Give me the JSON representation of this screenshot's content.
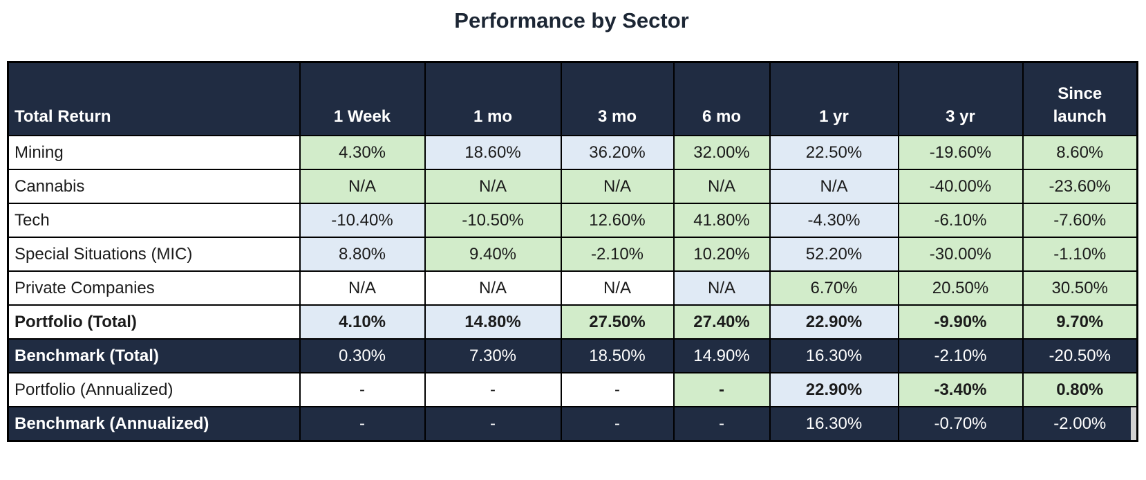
{
  "title": "Performance by Sector",
  "palette": {
    "navy": "#202c42",
    "green": "#d2ecca",
    "blue": "#e0eaf5",
    "grid": "#000000",
    "artifact_gray": "#d2d2d2"
  },
  "table": {
    "header": [
      "Total Return",
      "1 Week",
      "1 mo",
      "3 mo",
      "6 mo",
      "1 yr",
      "3 yr",
      "Since\nlaunch"
    ],
    "rows": [
      {
        "label": "Mining",
        "row_bg": "white",
        "label_bold": false,
        "cells": [
          {
            "v": "4.30%",
            "bg": "green",
            "bold": false
          },
          {
            "v": "18.60%",
            "bg": "blue",
            "bold": false
          },
          {
            "v": "36.20%",
            "bg": "blue",
            "bold": false
          },
          {
            "v": "32.00%",
            "bg": "green",
            "bold": false
          },
          {
            "v": "22.50%",
            "bg": "blue",
            "bold": false
          },
          {
            "v": "-19.60%",
            "bg": "green",
            "bold": false
          },
          {
            "v": "8.60%",
            "bg": "green",
            "bold": false
          }
        ]
      },
      {
        "label": "Cannabis",
        "row_bg": "white",
        "label_bold": false,
        "cells": [
          {
            "v": "N/A",
            "bg": "green",
            "bold": false
          },
          {
            "v": "N/A",
            "bg": "green",
            "bold": false
          },
          {
            "v": "N/A",
            "bg": "green",
            "bold": false
          },
          {
            "v": "N/A",
            "bg": "green",
            "bold": false
          },
          {
            "v": "N/A",
            "bg": "blue",
            "bold": false
          },
          {
            "v": "-40.00%",
            "bg": "green",
            "bold": false
          },
          {
            "v": "-23.60%",
            "bg": "green",
            "bold": false
          }
        ]
      },
      {
        "label": "Tech",
        "row_bg": "white",
        "label_bold": false,
        "cells": [
          {
            "v": "-10.40%",
            "bg": "blue",
            "bold": false
          },
          {
            "v": "-10.50%",
            "bg": "green",
            "bold": false
          },
          {
            "v": "12.60%",
            "bg": "green",
            "bold": false
          },
          {
            "v": "41.80%",
            "bg": "green",
            "bold": false
          },
          {
            "v": "-4.30%",
            "bg": "blue",
            "bold": false
          },
          {
            "v": "-6.10%",
            "bg": "green",
            "bold": false
          },
          {
            "v": "-7.60%",
            "bg": "green",
            "bold": false
          }
        ]
      },
      {
        "label": "Special Situations (MIC)",
        "row_bg": "white",
        "label_bold": false,
        "cells": [
          {
            "v": "8.80%",
            "bg": "blue",
            "bold": false
          },
          {
            "v": "9.40%",
            "bg": "green",
            "bold": false
          },
          {
            "v": "-2.10%",
            "bg": "green",
            "bold": false
          },
          {
            "v": "10.20%",
            "bg": "green",
            "bold": false
          },
          {
            "v": "52.20%",
            "bg": "blue",
            "bold": false
          },
          {
            "v": "-30.00%",
            "bg": "green",
            "bold": false
          },
          {
            "v": "-1.10%",
            "bg": "green",
            "bold": false
          }
        ]
      },
      {
        "label": "Private Companies",
        "row_bg": "white",
        "label_bold": false,
        "cells": [
          {
            "v": "N/A",
            "bg": "white",
            "bold": false
          },
          {
            "v": "N/A",
            "bg": "white",
            "bold": false
          },
          {
            "v": "N/A",
            "bg": "white",
            "bold": false
          },
          {
            "v": "N/A",
            "bg": "blue",
            "bold": false
          },
          {
            "v": "6.70%",
            "bg": "green",
            "bold": false
          },
          {
            "v": "20.50%",
            "bg": "green",
            "bold": false
          },
          {
            "v": "30.50%",
            "bg": "green",
            "bold": false
          }
        ]
      },
      {
        "label": "Portfolio (Total)",
        "row_bg": "white",
        "label_bold": true,
        "cells": [
          {
            "v": "4.10%",
            "bg": "blue",
            "bold": true
          },
          {
            "v": "14.80%",
            "bg": "blue",
            "bold": true
          },
          {
            "v": "27.50%",
            "bg": "green",
            "bold": true
          },
          {
            "v": "27.40%",
            "bg": "green",
            "bold": true
          },
          {
            "v": "22.90%",
            "bg": "blue",
            "bold": true
          },
          {
            "v": "-9.90%",
            "bg": "green",
            "bold": true
          },
          {
            "v": "9.70%",
            "bg": "green",
            "bold": true
          }
        ]
      },
      {
        "label": "Benchmark (Total)",
        "row_bg": "navy",
        "label_bold": true,
        "cells": [
          {
            "v": "0.30%",
            "bg": "navy",
            "bold": false
          },
          {
            "v": "7.30%",
            "bg": "navy",
            "bold": false
          },
          {
            "v": "18.50%",
            "bg": "navy",
            "bold": false
          },
          {
            "v": "14.90%",
            "bg": "navy",
            "bold": false
          },
          {
            "v": "16.30%",
            "bg": "navy",
            "bold": false
          },
          {
            "v": "-2.10%",
            "bg": "navy",
            "bold": false
          },
          {
            "v": "-20.50%",
            "bg": "navy",
            "bold": false
          }
        ]
      },
      {
        "label": "Portfolio (Annualized)",
        "row_bg": "white",
        "label_bold": false,
        "cells": [
          {
            "v": "-",
            "bg": "white",
            "bold": false
          },
          {
            "v": "-",
            "bg": "white",
            "bold": false
          },
          {
            "v": "-",
            "bg": "white",
            "bold": false
          },
          {
            "v": "-",
            "bg": "green",
            "bold": true
          },
          {
            "v": "22.90%",
            "bg": "blue",
            "bold": true
          },
          {
            "v": "-3.40%",
            "bg": "green",
            "bold": true
          },
          {
            "v": "0.80%",
            "bg": "green",
            "bold": true
          }
        ]
      },
      {
        "label": "Benchmark (Annualized)",
        "row_bg": "navy",
        "label_bold": true,
        "cells": [
          {
            "v": "-",
            "bg": "navy",
            "bold": false
          },
          {
            "v": "-",
            "bg": "navy",
            "bold": false
          },
          {
            "v": "-",
            "bg": "navy",
            "bold": false
          },
          {
            "v": "-",
            "bg": "navy",
            "bold": false
          },
          {
            "v": "16.30%",
            "bg": "navy",
            "bold": false
          },
          {
            "v": "-0.70%",
            "bg": "navy",
            "bold": false
          },
          {
            "v": "-2.00%",
            "bg": "navy",
            "bold": false,
            "artifact": true
          }
        ]
      }
    ]
  },
  "chart_data": {
    "type": "table",
    "title": "Performance by Sector",
    "categories": [
      "1 Week",
      "1 mo",
      "3 mo",
      "6 mo",
      "1 yr",
      "3 yr",
      "Since launch"
    ],
    "row_header": "Total Return",
    "series": [
      {
        "name": "Mining",
        "values": [
          4.3,
          18.6,
          36.2,
          32.0,
          22.5,
          -19.6,
          8.6
        ]
      },
      {
        "name": "Cannabis",
        "values": [
          null,
          null,
          null,
          null,
          null,
          -40.0,
          -23.6
        ]
      },
      {
        "name": "Tech",
        "values": [
          -10.4,
          -10.5,
          12.6,
          41.8,
          -4.3,
          -6.1,
          -7.6
        ]
      },
      {
        "name": "Special Situations (MIC)",
        "values": [
          8.8,
          9.4,
          -2.1,
          10.2,
          52.2,
          -30.0,
          -1.1
        ]
      },
      {
        "name": "Private Companies",
        "values": [
          null,
          null,
          null,
          null,
          6.7,
          20.5,
          30.5
        ]
      },
      {
        "name": "Portfolio (Total)",
        "values": [
          4.1,
          14.8,
          27.5,
          27.4,
          22.9,
          -9.9,
          9.7
        ]
      },
      {
        "name": "Benchmark (Total)",
        "values": [
          0.3,
          7.3,
          18.5,
          14.9,
          16.3,
          -2.1,
          -20.5
        ]
      },
      {
        "name": "Portfolio (Annualized)",
        "values": [
          null,
          null,
          null,
          null,
          22.9,
          -3.4,
          0.8
        ]
      },
      {
        "name": "Benchmark (Annualized)",
        "values": [
          null,
          null,
          null,
          null,
          16.3,
          -0.7,
          -2.0
        ]
      }
    ],
    "units": "percent",
    "notes": "null = N/A or dash in the rendered table"
  }
}
